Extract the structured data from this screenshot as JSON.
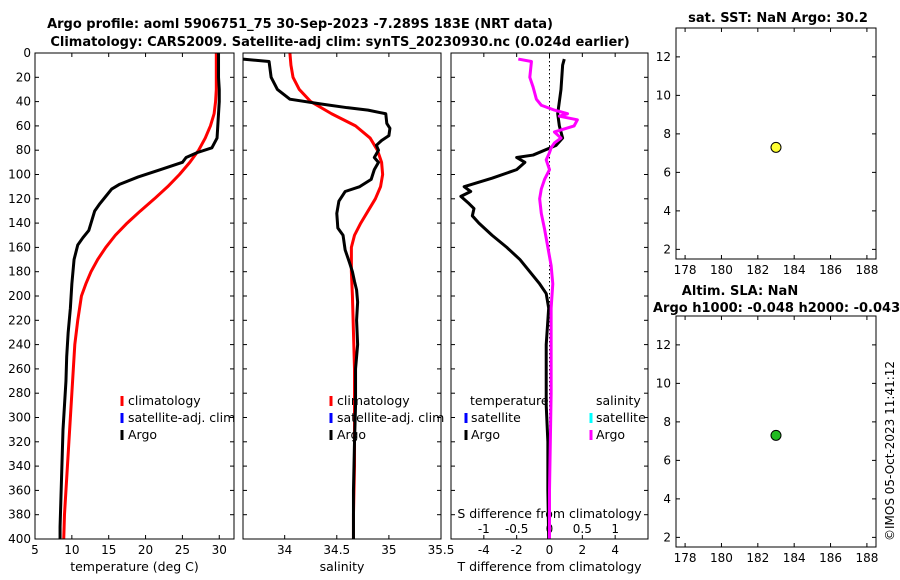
{
  "header": {
    "title_line1": "Argo profile: aoml 5906751_75 30-Sep-2023 -7.289S 183E (NRT data)",
    "title_line2": "Climatology: CARS2009. Satellite-adj clim: synTS_20230930.nc (0.024d earlier)"
  },
  "side_text": "©IMOS 05-Oct-2023 11:41:12",
  "colors": {
    "climatology": "#ff0000",
    "satellite_adj": "#0000ff",
    "argo": "#000000",
    "satellite_s": "#00ffff",
    "argo_s": "#ff00ff",
    "sst_marker": "#ffff33",
    "sla_marker": "#22bb22"
  },
  "chart_data": [
    {
      "id": "temperature",
      "type": "line",
      "xlabel": "temperature (deg C)",
      "xlim": [
        5,
        32
      ],
      "xticks": [
        "5",
        "10",
        "15",
        "20",
        "25",
        "30"
      ],
      "ylim": [
        400,
        0
      ],
      "yticks": [
        "0",
        "20",
        "40",
        "60",
        "80",
        "100",
        "120",
        "140",
        "160",
        "180",
        "200",
        "220",
        "240",
        "260",
        "280",
        "300",
        "320",
        "340",
        "360",
        "380",
        "400"
      ],
      "legend": [
        "climatology",
        "satellite-adj. clim",
        "Argo"
      ],
      "series": [
        {
          "name": "climatology",
          "color": "#ff0000",
          "points": [
            [
              29.6,
              0
            ],
            [
              29.6,
              10
            ],
            [
              29.6,
              20
            ],
            [
              29.6,
              30
            ],
            [
              29.5,
              40
            ],
            [
              29.3,
              50
            ],
            [
              28.8,
              60
            ],
            [
              28.1,
              70
            ],
            [
              27.2,
              80
            ],
            [
              26.0,
              90
            ],
            [
              24.6,
              100
            ],
            [
              23.0,
              110
            ],
            [
              21.2,
              120
            ],
            [
              19.3,
              130
            ],
            [
              17.5,
              140
            ],
            [
              15.9,
              150
            ],
            [
              14.6,
              160
            ],
            [
              13.5,
              170
            ],
            [
              12.6,
              180
            ],
            [
              11.9,
              190
            ],
            [
              11.3,
              200
            ],
            [
              10.8,
              220
            ],
            [
              10.4,
              240
            ],
            [
              10.2,
              260
            ],
            [
              10.0,
              280
            ],
            [
              9.8,
              300
            ],
            [
              9.6,
              320
            ],
            [
              9.4,
              340
            ],
            [
              9.2,
              360
            ],
            [
              9.0,
              380
            ],
            [
              8.9,
              400
            ]
          ]
        },
        {
          "name": "Argo",
          "color": "#000000",
          "points": [
            [
              29.9,
              0
            ],
            [
              29.9,
              10
            ],
            [
              29.9,
              20
            ],
            [
              30.0,
              30
            ],
            [
              30.0,
              40
            ],
            [
              29.9,
              50
            ],
            [
              29.8,
              60
            ],
            [
              29.7,
              70
            ],
            [
              29.0,
              78
            ],
            [
              27.0,
              82
            ],
            [
              25.5,
              86
            ],
            [
              25.0,
              90
            ],
            [
              22.0,
              96
            ],
            [
              19.0,
              102
            ],
            [
              16.5,
              108
            ],
            [
              15.4,
              112
            ],
            [
              14.6,
              118
            ],
            [
              13.8,
              124
            ],
            [
              13.1,
              130
            ],
            [
              12.7,
              138
            ],
            [
              12.3,
              146
            ],
            [
              11.5,
              152
            ],
            [
              10.8,
              158
            ],
            [
              10.3,
              170
            ],
            [
              10.0,
              190
            ],
            [
              9.8,
              210
            ],
            [
              9.5,
              230
            ],
            [
              9.3,
              250
            ],
            [
              9.2,
              270
            ],
            [
              9.0,
              290
            ],
            [
              8.8,
              310
            ],
            [
              8.7,
              330
            ],
            [
              8.6,
              350
            ],
            [
              8.5,
              370
            ],
            [
              8.4,
              390
            ],
            [
              8.4,
              400
            ]
          ]
        }
      ]
    },
    {
      "id": "salinity",
      "type": "line",
      "xlabel": "salinity",
      "xlim": [
        33.6,
        35.5
      ],
      "xticks": [
        "34",
        "34.5",
        "35",
        "35.5"
      ],
      "ylim": [
        400,
        0
      ],
      "legend": [
        "climatology",
        "satellite-adj. clim",
        "Argo"
      ],
      "series": [
        {
          "name": "climatology",
          "color": "#ff0000",
          "points": [
            [
              34.05,
              0
            ],
            [
              34.06,
              10
            ],
            [
              34.08,
              20
            ],
            [
              34.14,
              30
            ],
            [
              34.25,
              40
            ],
            [
              34.45,
              50
            ],
            [
              34.68,
              60
            ],
            [
              34.82,
              70
            ],
            [
              34.89,
              80
            ],
            [
              34.93,
              90
            ],
            [
              34.94,
              100
            ],
            [
              34.92,
              110
            ],
            [
              34.87,
              120
            ],
            [
              34.8,
              130
            ],
            [
              34.73,
              140
            ],
            [
              34.67,
              150
            ],
            [
              34.64,
              160
            ],
            [
              34.64,
              180
            ],
            [
              34.65,
              200
            ],
            [
              34.66,
              230
            ],
            [
              34.67,
              260
            ],
            [
              34.67,
              300
            ],
            [
              34.67,
              340
            ],
            [
              34.66,
              380
            ],
            [
              34.66,
              400
            ]
          ]
        },
        {
          "name": "Argo",
          "color": "#000000",
          "points": [
            [
              33.6,
              5
            ],
            [
              33.85,
              7
            ],
            [
              33.87,
              20
            ],
            [
              33.93,
              30
            ],
            [
              34.05,
              38
            ],
            [
              34.35,
              42
            ],
            [
              34.6,
              45
            ],
            [
              34.8,
              47
            ],
            [
              34.97,
              50
            ],
            [
              34.98,
              58
            ],
            [
              35.01,
              62
            ],
            [
              35.0,
              68
            ],
            [
              34.93,
              72
            ],
            [
              34.88,
              76
            ],
            [
              34.9,
              80
            ],
            [
              34.86,
              86
            ],
            [
              34.9,
              90
            ],
            [
              34.86,
              96
            ],
            [
              34.83,
              104
            ],
            [
              34.72,
              110
            ],
            [
              34.58,
              114
            ],
            [
              34.52,
              122
            ],
            [
              34.5,
              132
            ],
            [
              34.51,
              144
            ],
            [
              34.56,
              150
            ],
            [
              34.58,
              162
            ],
            [
              34.62,
              172
            ],
            [
              34.65,
              180
            ],
            [
              34.67,
              188
            ],
            [
              34.69,
              195
            ],
            [
              34.7,
              205
            ],
            [
              34.69,
              220
            ],
            [
              34.7,
              240
            ],
            [
              34.68,
              260
            ],
            [
              34.68,
              290
            ],
            [
              34.67,
              320
            ],
            [
              34.66,
              360
            ],
            [
              34.66,
              400
            ]
          ]
        }
      ]
    },
    {
      "id": "difference",
      "type": "line",
      "xlabel": "T difference from climatology",
      "xlabel_top": "S difference from climatology",
      "xlim": [
        -6,
        6
      ],
      "xticks": [
        "-4",
        "-2",
        "0",
        "2",
        "4"
      ],
      "xticks_s": [
        "-1",
        "-0.5",
        "0",
        "0.5",
        "1"
      ],
      "ylim": [
        400,
        0
      ],
      "legend": {
        "temperature_header": "temperature",
        "salinity_header": "salinity",
        "items": [
          "satellite",
          "Argo"
        ]
      },
      "series": [
        {
          "name": "temperature Argo",
          "color": "#000000",
          "points": [
            [
              0.9,
              5
            ],
            [
              0.8,
              10
            ],
            [
              0.7,
              30
            ],
            [
              0.6,
              40
            ],
            [
              0.5,
              50
            ],
            [
              0.6,
              60
            ],
            [
              0.8,
              70
            ],
            [
              0.4,
              76
            ],
            [
              -1.0,
              84
            ],
            [
              -2.0,
              86
            ],
            [
              -1.5,
              90
            ],
            [
              -2.0,
              96
            ],
            [
              -3.5,
              103
            ],
            [
              -5.2,
              110
            ],
            [
              -4.8,
              114
            ],
            [
              -5.4,
              118
            ],
            [
              -4.9,
              124
            ],
            [
              -4.6,
              128
            ],
            [
              -4.7,
              134
            ],
            [
              -4.3,
              140
            ],
            [
              -3.5,
              150
            ],
            [
              -2.6,
              160
            ],
            [
              -1.8,
              170
            ],
            [
              -1.2,
              180
            ],
            [
              -0.6,
              190
            ],
            [
              -0.2,
              198
            ],
            [
              -0.05,
              210
            ],
            [
              -0.1,
              220
            ],
            [
              -0.2,
              240
            ],
            [
              -0.2,
              260
            ],
            [
              -0.2,
              290
            ],
            [
              -0.1,
              320
            ],
            [
              -0.1,
              360
            ],
            [
              -0.05,
              400
            ]
          ]
        },
        {
          "name": "salinity Argo",
          "color": "#ff00ff",
          "points": [
            [
              -1.9,
              5
            ],
            [
              -1.1,
              7
            ],
            [
              -1.2,
              20
            ],
            [
              -1.0,
              28
            ],
            [
              -0.8,
              38
            ],
            [
              -0.5,
              43
            ],
            [
              0.3,
              47
            ],
            [
              1.1,
              50
            ],
            [
              0.6,
              52
            ],
            [
              1.7,
              55
            ],
            [
              1.5,
              60
            ],
            [
              0.3,
              65
            ],
            [
              0.7,
              70
            ],
            [
              0.3,
              74
            ],
            [
              0.1,
              78
            ],
            [
              0.0,
              82
            ],
            [
              -0.2,
              88
            ],
            [
              0.0,
              96
            ],
            [
              -0.3,
              104
            ],
            [
              -0.5,
              112
            ],
            [
              -0.6,
              120
            ],
            [
              -0.5,
              132
            ],
            [
              -0.3,
              145
            ],
            [
              -0.1,
              160
            ],
            [
              0.1,
              175
            ],
            [
              0.2,
              190
            ],
            [
              0.1,
              210
            ],
            [
              0.1,
              240
            ],
            [
              0.1,
              280
            ],
            [
              0.05,
              320
            ],
            [
              0.0,
              360
            ],
            [
              0.0,
              400
            ]
          ]
        }
      ]
    },
    {
      "id": "sst",
      "type": "scatter",
      "title": "sat. SST: NaN Argo: 30.2",
      "xlim": [
        177.5,
        188.5
      ],
      "ylim": [
        1.5,
        13.5
      ],
      "xticks": [
        "178",
        "180",
        "182",
        "184",
        "186",
        "188"
      ],
      "yticks": [
        "2",
        "4",
        "6",
        "8",
        "10",
        "12"
      ],
      "points": [
        [
          183.0,
          7.3
        ]
      ]
    },
    {
      "id": "sla",
      "type": "scatter",
      "title": "Altim. SLA: NaN",
      "subtitle": "Argo h1000: -0.048 h2000: -0.043",
      "xlim": [
        177.5,
        188.5
      ],
      "ylim": [
        1.5,
        13.5
      ],
      "xticks": [
        "178",
        "180",
        "182",
        "184",
        "186",
        "188"
      ],
      "yticks": [
        "2",
        "4",
        "6",
        "8",
        "10",
        "12"
      ],
      "points": [
        [
          183.0,
          7.3
        ]
      ]
    }
  ]
}
